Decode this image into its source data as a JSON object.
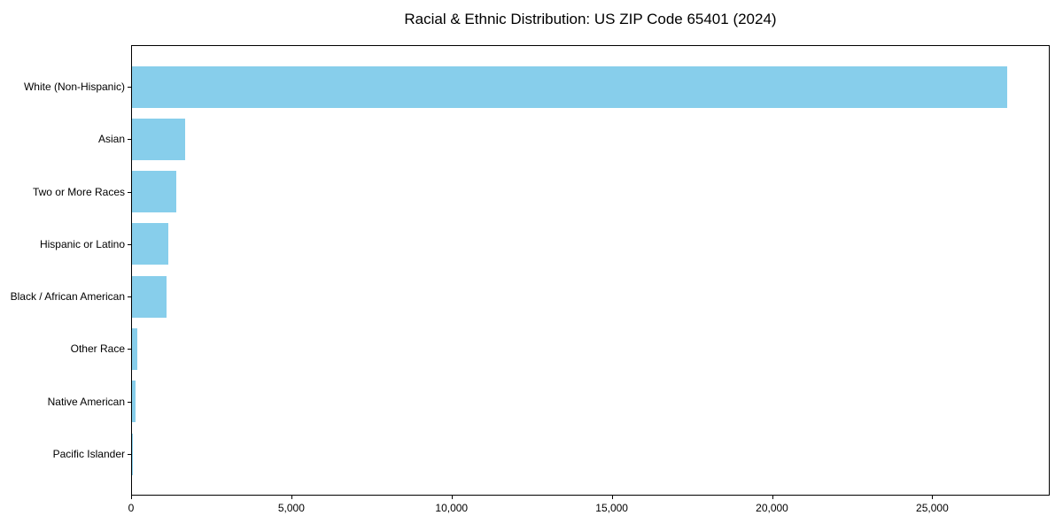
{
  "title": "Racial & Ethnic Distribution: US ZIP Code 65401 (2024)",
  "chart_data": {
    "type": "bar",
    "orientation": "horizontal",
    "title": "Racial & Ethnic Distribution: US ZIP Code 65401 (2024)",
    "categories": [
      "White (Non-Hispanic)",
      "Asian",
      "Two or More Races",
      "Hispanic or Latino",
      "Black / African American",
      "Other Race",
      "Native American",
      "Pacific Islander"
    ],
    "values": [
      27300,
      1650,
      1380,
      1130,
      1080,
      165,
      120,
      15
    ],
    "xlabel": "",
    "ylabel": "",
    "xlim": [
      0,
      28665
    ],
    "xticks": [
      0,
      5000,
      10000,
      15000,
      20000,
      25000
    ],
    "xtick_labels": [
      "0",
      "5,000",
      "10,000",
      "15,000",
      "20,000",
      "25,000"
    ],
    "bar_color": "#87CEEB",
    "spine_color": "#000000",
    "grid": false,
    "legend": null
  }
}
